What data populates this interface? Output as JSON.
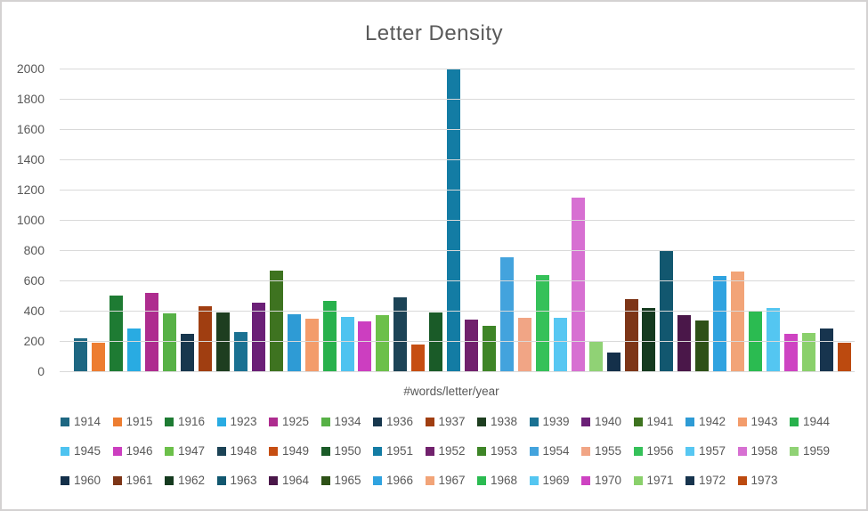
{
  "chart_data": {
    "type": "bar",
    "title": "Letter Density",
    "xlabel": "#words/letter/year",
    "ylabel": "",
    "ylim": [
      0,
      2000
    ],
    "yticks": [
      0,
      200,
      400,
      600,
      800,
      1000,
      1200,
      1400,
      1600,
      1800,
      2000
    ],
    "grid": true,
    "legend_position": "bottom",
    "legend_rows": [
      15,
      15,
      14
    ],
    "series": [
      {
        "name": "1914",
        "value": 215,
        "color": "#1E6782"
      },
      {
        "name": "1915",
        "value": 190,
        "color": "#ED7D31"
      },
      {
        "name": "1916",
        "value": 500,
        "color": "#1E7B33"
      },
      {
        "name": "1923",
        "value": 280,
        "color": "#29ABE2"
      },
      {
        "name": "1925",
        "value": 520,
        "color": "#AE2C8F"
      },
      {
        "name": "1934",
        "value": 380,
        "color": "#57B146"
      },
      {
        "name": "1936",
        "value": 245,
        "color": "#17374E"
      },
      {
        "name": "1937",
        "value": 430,
        "color": "#A03E11"
      },
      {
        "name": "1938",
        "value": 390,
        "color": "#1E3E20"
      },
      {
        "name": "1939",
        "value": 260,
        "color": "#1A7192"
      },
      {
        "name": "1940",
        "value": 455,
        "color": "#6B2077"
      },
      {
        "name": "1941",
        "value": 665,
        "color": "#3E7320"
      },
      {
        "name": "1942",
        "value": 375,
        "color": "#2E9BD5"
      },
      {
        "name": "1943",
        "value": 345,
        "color": "#F39C6B"
      },
      {
        "name": "1944",
        "value": 465,
        "color": "#28B14C"
      },
      {
        "name": "1945",
        "value": 360,
        "color": "#4EC3F0"
      },
      {
        "name": "1946",
        "value": 330,
        "color": "#CC3EC0"
      },
      {
        "name": "1947",
        "value": 370,
        "color": "#6CC04A"
      },
      {
        "name": "1948",
        "value": 490,
        "color": "#1C4356"
      },
      {
        "name": "1949",
        "value": 175,
        "color": "#C64E12"
      },
      {
        "name": "1950",
        "value": 390,
        "color": "#1A5B28"
      },
      {
        "name": "1951",
        "value": 2000,
        "color": "#137CA4"
      },
      {
        "name": "1952",
        "value": 340,
        "color": "#71216D"
      },
      {
        "name": "1953",
        "value": 300,
        "color": "#3E8527"
      },
      {
        "name": "1954",
        "value": 755,
        "color": "#43A3DD"
      },
      {
        "name": "1955",
        "value": 355,
        "color": "#F1A585"
      },
      {
        "name": "1956",
        "value": 635,
        "color": "#35C159"
      },
      {
        "name": "1957",
        "value": 355,
        "color": "#57C7F2"
      },
      {
        "name": "1958",
        "value": 1145,
        "color": "#D770D2"
      },
      {
        "name": "1959",
        "value": 200,
        "color": "#90D275"
      },
      {
        "name": "1960",
        "value": 125,
        "color": "#14304A"
      },
      {
        "name": "1961",
        "value": 475,
        "color": "#7D3517"
      },
      {
        "name": "1962",
        "value": 415,
        "color": "#153A1F"
      },
      {
        "name": "1963",
        "value": 800,
        "color": "#12576F"
      },
      {
        "name": "1964",
        "value": 370,
        "color": "#4A1749"
      },
      {
        "name": "1965",
        "value": 335,
        "color": "#2E5117"
      },
      {
        "name": "1966",
        "value": 630,
        "color": "#30A3E0"
      },
      {
        "name": "1967",
        "value": 660,
        "color": "#F2A478"
      },
      {
        "name": "1968",
        "value": 400,
        "color": "#2BBB51"
      },
      {
        "name": "1969",
        "value": 420,
        "color": "#54C6F1"
      },
      {
        "name": "1970",
        "value": 245,
        "color": "#CE43C2"
      },
      {
        "name": "1971",
        "value": 255,
        "color": "#8AD06B"
      },
      {
        "name": "1972",
        "value": 285,
        "color": "#17344E"
      },
      {
        "name": "1973",
        "value": 190,
        "color": "#BC4A0F"
      }
    ]
  },
  "colors": {
    "text": "#595959",
    "gridline": "#D9D9D9",
    "frame_border": "#D4D2D2",
    "background": "#FFFFFF"
  }
}
